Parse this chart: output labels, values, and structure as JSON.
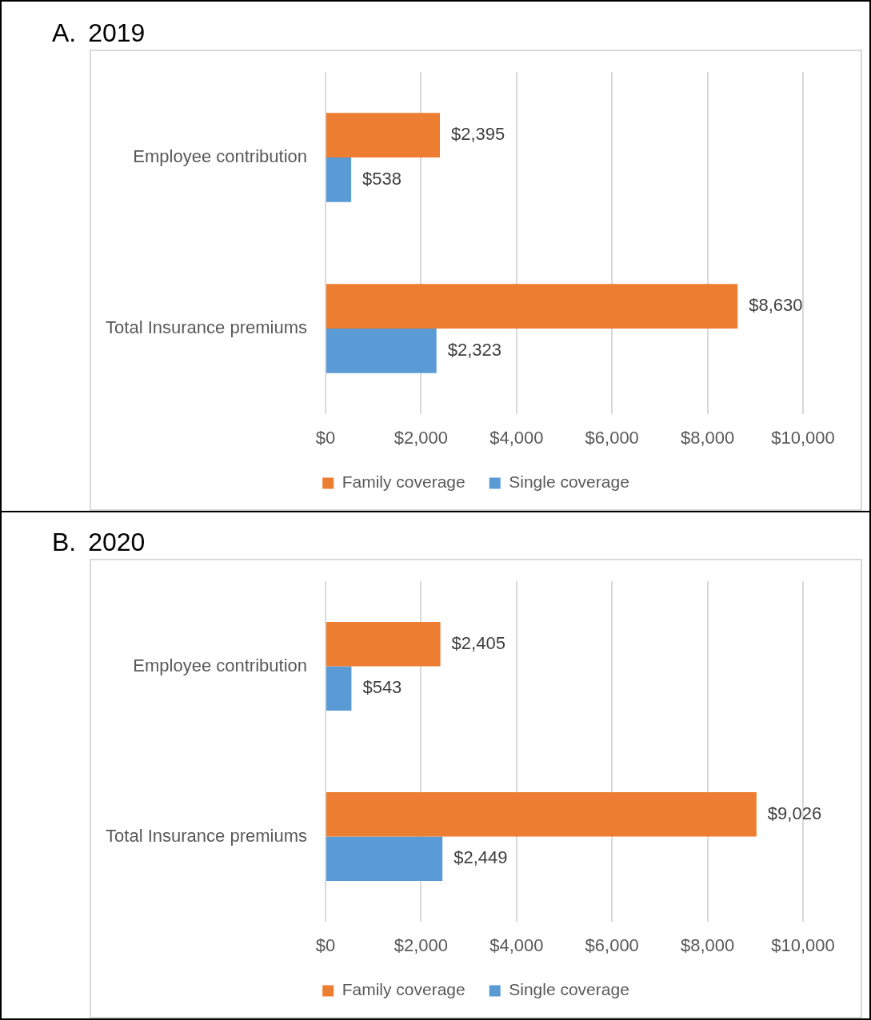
{
  "chart_data": [
    {
      "type": "bar",
      "orientation": "horizontal",
      "title": "A. 2019",
      "categories": [
        "Employee contribution",
        "Total Insurance premiums"
      ],
      "series": [
        {
          "name": "Family coverage",
          "color": "#ed7d31",
          "values": [
            2395,
            8630
          ],
          "value_labels": [
            "$2,395",
            "$8,630"
          ]
        },
        {
          "name": "Single coverage",
          "color": "#5b9bd5",
          "values": [
            538,
            2323
          ],
          "value_labels": [
            "$538",
            "$2,323"
          ]
        }
      ],
      "xlim": [
        0,
        10000
      ],
      "xticks": [
        {
          "value": 0,
          "label": "$0"
        },
        {
          "value": 2000,
          "label": "$2,000"
        },
        {
          "value": 4000,
          "label": "$4,000"
        },
        {
          "value": 6000,
          "label": "$6,000"
        },
        {
          "value": 8000,
          "label": "$8,000"
        },
        {
          "value": 10000,
          "label": "$10,000"
        }
      ],
      "grid": "x",
      "legend": "bottom"
    },
    {
      "type": "bar",
      "orientation": "horizontal",
      "title": "B. 2020",
      "categories": [
        "Employee contribution",
        "Total Insurance premiums"
      ],
      "series": [
        {
          "name": "Family coverage",
          "color": "#ed7d31",
          "values": [
            2405,
            9026
          ],
          "value_labels": [
            "$2,405",
            "$9,026"
          ]
        },
        {
          "name": "Single coverage",
          "color": "#5b9bd5",
          "values": [
            543,
            2449
          ],
          "value_labels": [
            "$543",
            "$2,449"
          ]
        }
      ],
      "xlim": [
        0,
        10000
      ],
      "xticks": [
        {
          "value": 0,
          "label": "$0"
        },
        {
          "value": 2000,
          "label": "$2,000"
        },
        {
          "value": 4000,
          "label": "$4,000"
        },
        {
          "value": 6000,
          "label": "$6,000"
        },
        {
          "value": 8000,
          "label": "$8,000"
        },
        {
          "value": 10000,
          "label": "$10,000"
        }
      ],
      "grid": "x",
      "legend": "bottom"
    }
  ]
}
